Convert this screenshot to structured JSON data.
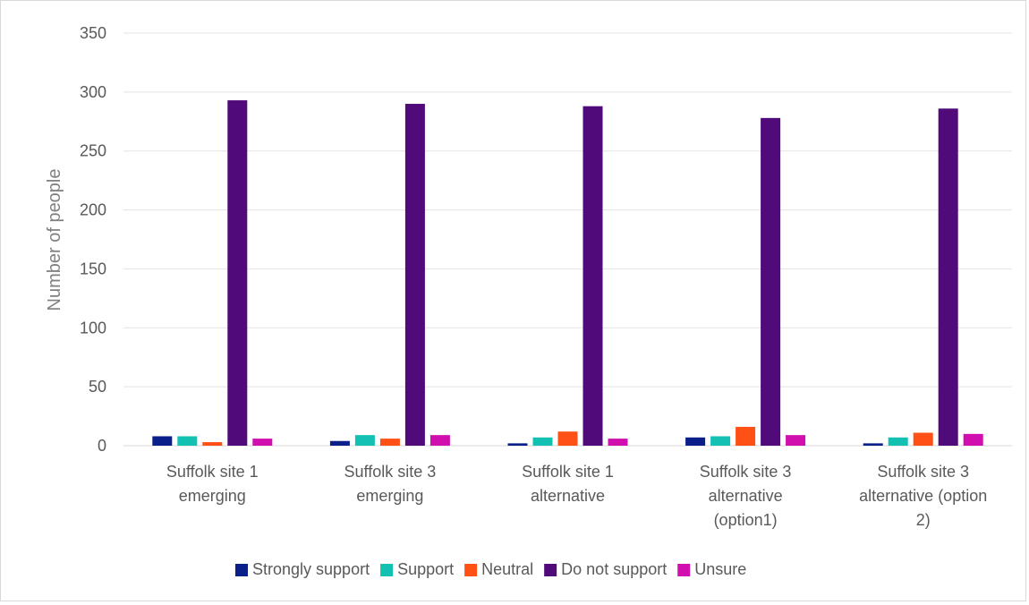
{
  "chart_data": {
    "type": "bar",
    "title": "",
    "xlabel": "",
    "ylabel": "Number of people",
    "ylim": [
      0,
      350
    ],
    "yticks": [
      "0",
      "50",
      "100",
      "150",
      "200",
      "250",
      "300",
      "350"
    ],
    "grid": true,
    "legend_position": "bottom",
    "categories": [
      [
        "Suffolk site 1",
        "emerging"
      ],
      [
        "Suffolk site 3",
        "emerging"
      ],
      [
        "Suffolk site 1",
        "alternative"
      ],
      [
        "Suffolk site 3",
        "alternative",
        "(option1)"
      ],
      [
        "Suffolk site 3",
        "alternative (option",
        "2)"
      ]
    ],
    "series": [
      {
        "name": "Strongly support",
        "color": "#0b1f8a",
        "values": [
          8,
          4,
          2,
          7,
          2
        ]
      },
      {
        "name": "Support",
        "color": "#13c1b3",
        "values": [
          8,
          9,
          7,
          8,
          7
        ]
      },
      {
        "name": "Neutral",
        "color": "#ff5016",
        "values": [
          3,
          6,
          12,
          16,
          11
        ]
      },
      {
        "name": "Do not support",
        "color": "#510a79",
        "values": [
          293,
          290,
          288,
          278,
          286
        ]
      },
      {
        "name": "Unsure",
        "color": "#d10fae",
        "values": [
          6,
          9,
          6,
          9,
          10
        ]
      }
    ]
  }
}
